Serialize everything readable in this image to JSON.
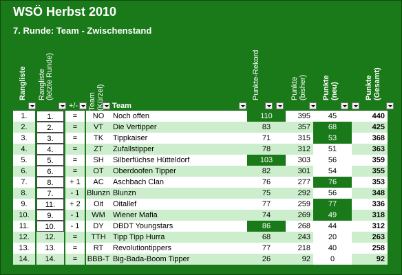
{
  "title": "WSÖ Herbst 2010",
  "subtitle": "7. Runde: Team - Zwischenstand",
  "headers": {
    "rang": "Rangliste",
    "rang_prev_1": "Rangliste",
    "rang_prev_2": "(letzte Runde)",
    "change": "+/-",
    "kuerzel_1": "Team",
    "kuerzel_2": "(Kürzel)",
    "team": "Team",
    "rekord": "Punkte-Rekord",
    "bisher_1": "Punkte",
    "bisher_2": "(bisher)",
    "neu_1": "Punkte",
    "neu_2": "(neu)",
    "gesamt_1": "Punkte",
    "gesamt_2": "(Gesamt)"
  },
  "rows": [
    {
      "rang": "1.",
      "prev": "1.",
      "chg": "=",
      "k": "NO",
      "team": "Noch offen",
      "rek": "110",
      "bis": "395",
      "neu": "45",
      "ges": "440"
    },
    {
      "rang": "2.",
      "prev": "2.",
      "chg": "=",
      "k": "VT",
      "team": "Die Vertipper",
      "rek": "83",
      "bis": "357",
      "neu": "68",
      "ges": "425"
    },
    {
      "rang": "3.",
      "prev": "3.",
      "chg": "=",
      "k": "TK",
      "team": "Tippkaiser",
      "rek": "71",
      "bis": "315",
      "neu": "53",
      "ges": "368"
    },
    {
      "rang": "4.",
      "prev": "4.",
      "chg": "=",
      "k": "ZT",
      "team": "Zufallstipper",
      "rek": "78",
      "bis": "312",
      "neu": "51",
      "ges": "363"
    },
    {
      "rang": "5.",
      "prev": "5.",
      "chg": "=",
      "k": "SH",
      "team": "Silberfüchse Hütteldorf",
      "rek": "103",
      "bis": "303",
      "neu": "56",
      "ges": "359"
    },
    {
      "rang": "6.",
      "prev": "6.",
      "chg": "=",
      "k": "OT",
      "team": "Oberdoofen Tipper",
      "rek": "82",
      "bis": "301",
      "neu": "54",
      "ges": "355"
    },
    {
      "rang": "7.",
      "prev": "8.",
      "chg": "+ 1",
      "k": "AC",
      "team": "Aschbach Clan",
      "rek": "76",
      "bis": "277",
      "neu": "76",
      "ges": "353"
    },
    {
      "rang": "8.",
      "prev": "7.",
      "chg": "- 1",
      "k": "Blunzn",
      "team": "Blunzn",
      "rek": "75",
      "bis": "292",
      "neu": "56",
      "ges": "348"
    },
    {
      "rang": "9.",
      "prev": "11.",
      "chg": "+ 2",
      "k": "Oit",
      "team": "Oitallef",
      "rek": "77",
      "bis": "259",
      "neu": "77",
      "ges": "336"
    },
    {
      "rang": "10.",
      "prev": "9.",
      "chg": "- 1",
      "k": "WM",
      "team": "Wiener Mafia",
      "rek": "74",
      "bis": "269",
      "neu": "49",
      "ges": "318"
    },
    {
      "rang": "11.",
      "prev": "10.",
      "chg": "- 1",
      "k": "DY",
      "team": "DBDT Youngstars",
      "rek": "86",
      "bis": "268",
      "neu": "44",
      "ges": "312"
    },
    {
      "rang": "12.",
      "prev": "12.",
      "chg": "=",
      "k": "TTH",
      "team": "Tipp Tipp Hurra",
      "rek": "68",
      "bis": "243",
      "neu": "20",
      "ges": "263"
    },
    {
      "rang": "13.",
      "prev": "13.",
      "chg": "=",
      "k": "RT",
      "team": "Revolutiontippers",
      "rek": "77",
      "bis": "218",
      "neu": "40",
      "ges": "258"
    },
    {
      "rang": "14.",
      "prev": "14.",
      "chg": "=",
      "k": "BBB-T",
      "team": "Big-Bada-Boom Tipper",
      "rek": "26",
      "bis": "92",
      "neu": "0",
      "ges": "92"
    }
  ]
}
